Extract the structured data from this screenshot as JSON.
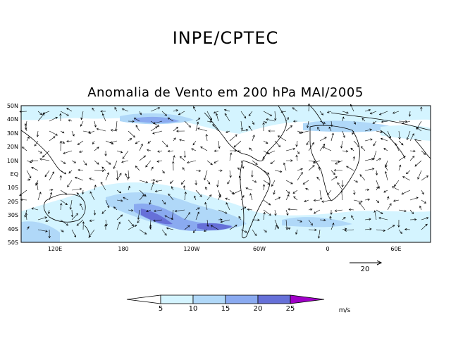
{
  "header": {
    "title": "INPE/CPTEC"
  },
  "map": {
    "title": "Anomalia de Vento em 200 hPa MAI/2005",
    "lat_labels": [
      "50N",
      "40N",
      "30N",
      "20N",
      "10N",
      "EQ",
      "10S",
      "20S",
      "30S",
      "40S",
      "50S"
    ],
    "lon_labels": [
      "120E",
      "180",
      "120W",
      "60W",
      "0",
      "60E"
    ],
    "reference_vector": {
      "label": "20"
    }
  },
  "colorbar": {
    "ticks": [
      "5",
      "10",
      "15",
      "20",
      "25"
    ],
    "units": "m/s",
    "colors": [
      "#ffffff",
      "#d4f4ff",
      "#b0d8f8",
      "#8aaaf0",
      "#6670d8",
      "#3030a8",
      "#a000c8"
    ]
  }
}
